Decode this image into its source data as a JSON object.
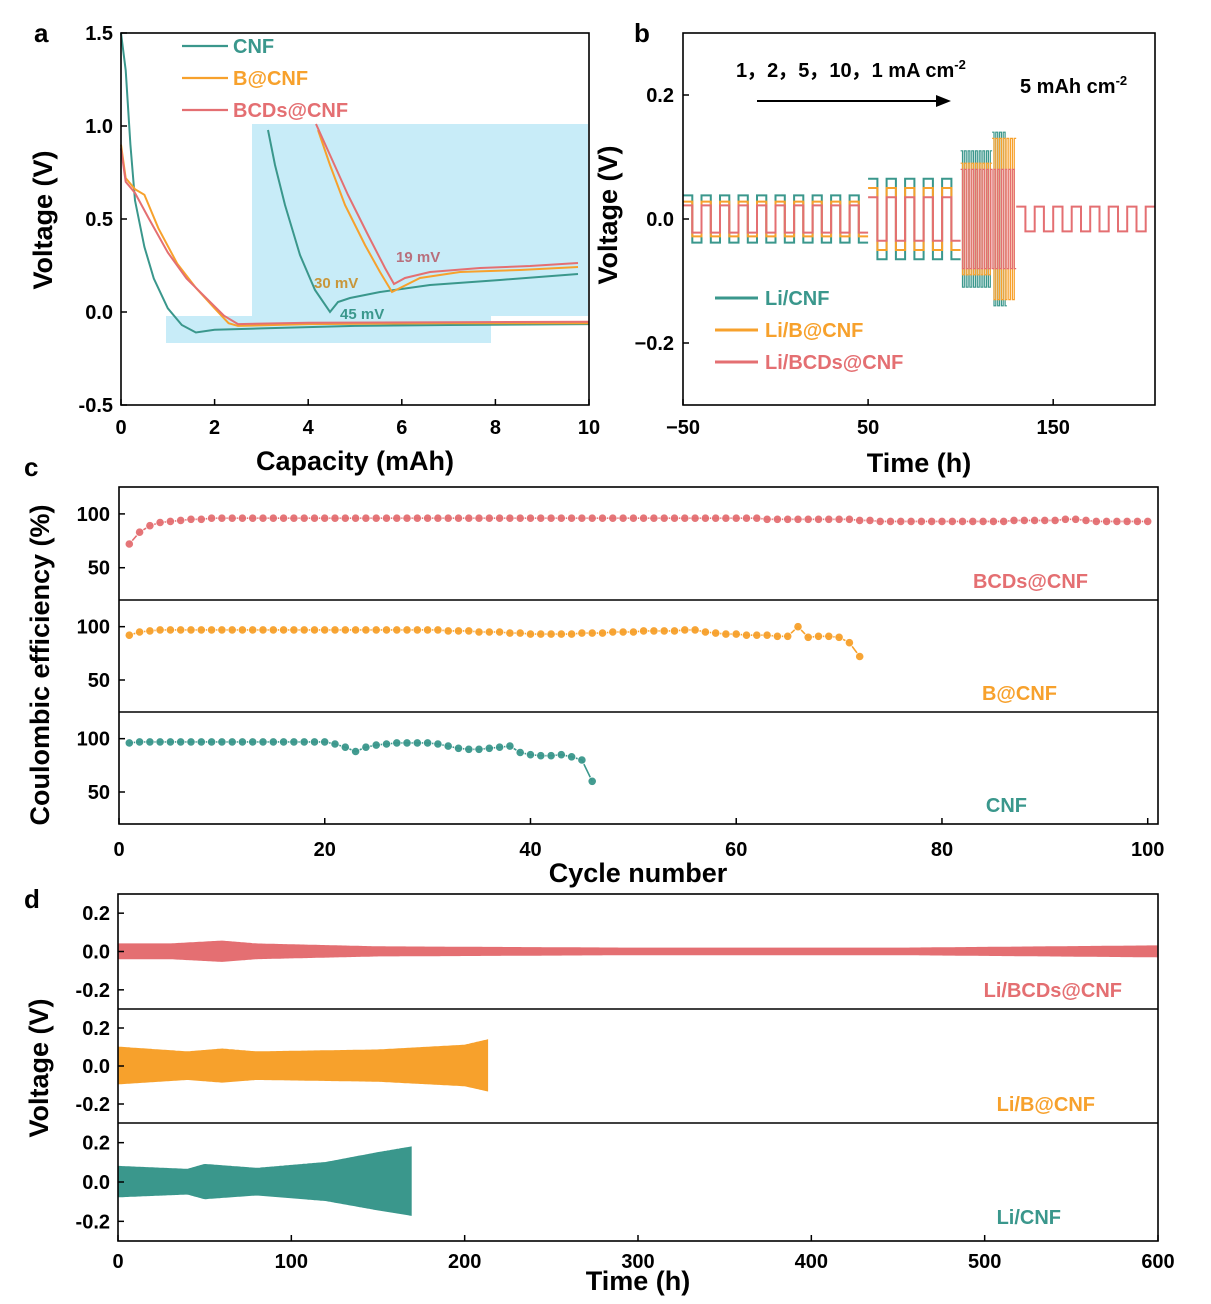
{
  "colors": {
    "cnf": "#3a978c",
    "b": "#f7a12c",
    "bcds": "#e46f72",
    "inset": "#c8ecf8"
  },
  "panels": {
    "a": "a",
    "b": "b",
    "c": "c",
    "d": "d"
  },
  "chart_data": [
    {
      "id": "a",
      "type": "line",
      "xlabel": "Capacity (mAh)",
      "ylabel": "Voltage (V)",
      "xlim": [
        0,
        10
      ],
      "ylim": [
        -0.5,
        1.5
      ],
      "xticks": [
        "0",
        "2",
        "4",
        "6",
        "8",
        "10"
      ],
      "yticks": [
        "1.5",
        "1.0",
        "0.5",
        "0.0",
        "-0.5"
      ],
      "legend": [
        "CNF",
        "B@CNF",
        "BCDs@CNF"
      ],
      "annotations": [
        "45 mV",
        "30 mV",
        "19 mV"
      ],
      "series": [
        {
          "name": "CNF",
          "color": "cnf",
          "points": [
            [
              0,
              1.5
            ],
            [
              0.1,
              1.3
            ],
            [
              0.2,
              0.9
            ],
            [
              0.3,
              0.6
            ],
            [
              0.5,
              0.35
            ],
            [
              0.7,
              0.18
            ],
            [
              1.0,
              0.02
            ],
            [
              1.3,
              -0.07
            ],
            [
              1.6,
              -0.11
            ],
            [
              2.0,
              -0.095
            ],
            [
              3,
              -0.088
            ],
            [
              5,
              -0.075
            ],
            [
              7,
              -0.07
            ],
            [
              10,
              -0.065
            ]
          ]
        },
        {
          "name": "B@CNF",
          "color": "b",
          "points": [
            [
              0,
              0.9
            ],
            [
              0.1,
              0.72
            ],
            [
              0.3,
              0.66
            ],
            [
              0.5,
              0.63
            ],
            [
              0.8,
              0.45
            ],
            [
              1.2,
              0.26
            ],
            [
              1.6,
              0.13
            ],
            [
              2.0,
              0.02
            ],
            [
              2.3,
              -0.06
            ],
            [
              2.5,
              -0.075
            ],
            [
              4,
              -0.065
            ],
            [
              7,
              -0.06
            ],
            [
              10,
              -0.06
            ]
          ]
        },
        {
          "name": "BCDs@CNF",
          "color": "bcds",
          "points": [
            [
              0,
              0.88
            ],
            [
              0.1,
              0.7
            ],
            [
              0.3,
              0.64
            ],
            [
              0.6,
              0.5
            ],
            [
              1.0,
              0.32
            ],
            [
              1.4,
              0.18
            ],
            [
              1.8,
              0.08
            ],
            [
              2.2,
              -0.02
            ],
            [
              2.5,
              -0.065
            ],
            [
              4,
              -0.058
            ],
            [
              7,
              -0.055
            ],
            [
              10,
              -0.052
            ]
          ]
        }
      ]
    },
    {
      "id": "b",
      "type": "line",
      "xlabel": "Time (h)",
      "ylabel": "Voltage (V)",
      "xlim": [
        -50,
        205
      ],
      "ylim": [
        -0.3,
        0.3
      ],
      "xticks": [
        "−50",
        "50",
        "150"
      ],
      "yticks": [
        "0.2",
        "0.0",
        "−0.2"
      ],
      "note_rates": "1，2，5，10，1 mA cm",
      "note_rates_sup": "-2",
      "note_cap": "5 mAh cm",
      "note_cap_sup": "-2",
      "legend": [
        "Li/CNF",
        "Li/B@CNF",
        "Li/BCDs@CNF"
      ],
      "series": [
        {
          "name": "Li/CNF",
          "color": "cnf",
          "segments": [
            {
              "t": [
                -50,
                50
              ],
              "amp": 0.038
            },
            {
              "t": [
                50,
                100
              ],
              "amp": 0.065
            },
            {
              "t": [
                100,
                117
              ],
              "amp": 0.11
            },
            {
              "t": [
                117,
                125
              ],
              "amp": 0.14
            }
          ]
        },
        {
          "name": "Li/B@CNF",
          "color": "b",
          "segments": [
            {
              "t": [
                -50,
                50
              ],
              "amp": 0.028
            },
            {
              "t": [
                50,
                100
              ],
              "amp": 0.05
            },
            {
              "t": [
                100,
                117
              ],
              "amp": 0.09
            },
            {
              "t": [
                117,
                130
              ],
              "amp": 0.13
            }
          ]
        },
        {
          "name": "Li/BCDs@CNF",
          "color": "bcds",
          "segments": [
            {
              "t": [
                -50,
                50
              ],
              "amp": 0.022
            },
            {
              "t": [
                50,
                100
              ],
              "amp": 0.035
            },
            {
              "t": [
                100,
                130
              ],
              "amp": 0.08
            },
            {
              "t": [
                130,
                205
              ],
              "amp": 0.02
            }
          ]
        }
      ]
    },
    {
      "id": "c",
      "type": "scatter",
      "xlabel": "Cycle number",
      "ylabel": "Coulombic efficiency (%)",
      "xlim": [
        0,
        101
      ],
      "ylim": [
        20,
        125
      ],
      "xticks": [
        "0",
        "20",
        "40",
        "60",
        "80",
        "100"
      ],
      "yticks": [
        "100",
        "50"
      ],
      "series": [
        {
          "name": "BCDs@CNF",
          "color": "bcds",
          "values": [
            72,
            83,
            89,
            92,
            93,
            94,
            95,
            95,
            96,
            96,
            96,
            96,
            96,
            96,
            96,
            96,
            96,
            96,
            96,
            96,
            96,
            96,
            96,
            96,
            96,
            96,
            96,
            96,
            96,
            96,
            96,
            96,
            96,
            96,
            96,
            96,
            96,
            96,
            96,
            96,
            96,
            96,
            96,
            96,
            96,
            96,
            96,
            96,
            96,
            96,
            96,
            96,
            96,
            96,
            96,
            96,
            96,
            96,
            96,
            96,
            96,
            96,
            95,
            95,
            95,
            95,
            95,
            95,
            95,
            95,
            95,
            94,
            94,
            93,
            93,
            93,
            93,
            93,
            93,
            93,
            93,
            93,
            93,
            93,
            93,
            93,
            94,
            94,
            94,
            94,
            94,
            95,
            95,
            94,
            93,
            93,
            93,
            93,
            93,
            93
          ]
        },
        {
          "name": "B@CNF",
          "color": "b",
          "values": [
            92,
            95,
            96,
            97,
            97,
            97,
            97,
            97,
            97,
            97,
            97,
            97,
            97,
            97,
            97,
            97,
            97,
            97,
            97,
            97,
            97,
            97,
            97,
            97,
            97,
            97,
            97,
            97,
            97,
            97,
            97,
            96,
            96,
            96,
            95,
            95,
            95,
            94,
            94,
            93,
            93,
            93,
            93,
            93,
            94,
            94,
            94,
            95,
            95,
            95,
            96,
            96,
            96,
            96,
            97,
            97,
            95,
            94,
            93,
            93,
            92,
            92,
            92,
            91,
            91,
            100,
            90,
            91,
            91,
            90,
            85,
            72
          ]
        },
        {
          "name": "CNF",
          "color": "cnf",
          "values": [
            96,
            97,
            97,
            97,
            97,
            97,
            97,
            97,
            97,
            97,
            97,
            97,
            97,
            97,
            97,
            97,
            97,
            97,
            97,
            97,
            95,
            92,
            88,
            92,
            94,
            95,
            96,
            96,
            96,
            96,
            95,
            93,
            91,
            90,
            90,
            91,
            92,
            93,
            87,
            85,
            84,
            84,
            85,
            83,
            80,
            60
          ]
        }
      ]
    },
    {
      "id": "d",
      "type": "area",
      "xlabel": "Time (h)",
      "ylabel": "Voltage (V)",
      "xlim": [
        0,
        600
      ],
      "ylim": [
        -0.3,
        0.3
      ],
      "xticks": [
        "0",
        "100",
        "200",
        "300",
        "400",
        "500",
        "600"
      ],
      "yticks": [
        "0.2",
        "0.0",
        "-0.2"
      ],
      "series": [
        {
          "name": "Li/BCDs@CNF",
          "color": "bcds",
          "envelope": [
            [
              0,
              0.04
            ],
            [
              30,
              0.04
            ],
            [
              60,
              0.055
            ],
            [
              80,
              0.04
            ],
            [
              150,
              0.025
            ],
            [
              300,
              0.018
            ],
            [
              450,
              0.018
            ],
            [
              600,
              0.03
            ]
          ]
        },
        {
          "name": "Li/B@CNF",
          "color": "b",
          "envelope": [
            [
              0,
              0.1
            ],
            [
              40,
              0.075
            ],
            [
              60,
              0.09
            ],
            [
              80,
              0.075
            ],
            [
              150,
              0.085
            ],
            [
              200,
              0.11
            ],
            [
              214,
              0.14
            ]
          ]
        },
        {
          "name": "Li/CNF",
          "color": "cnf",
          "envelope": [
            [
              0,
              0.08
            ],
            [
              40,
              0.065
            ],
            [
              50,
              0.09
            ],
            [
              80,
              0.07
            ],
            [
              120,
              0.1
            ],
            [
              150,
              0.15
            ],
            [
              170,
              0.18
            ]
          ]
        }
      ]
    }
  ]
}
